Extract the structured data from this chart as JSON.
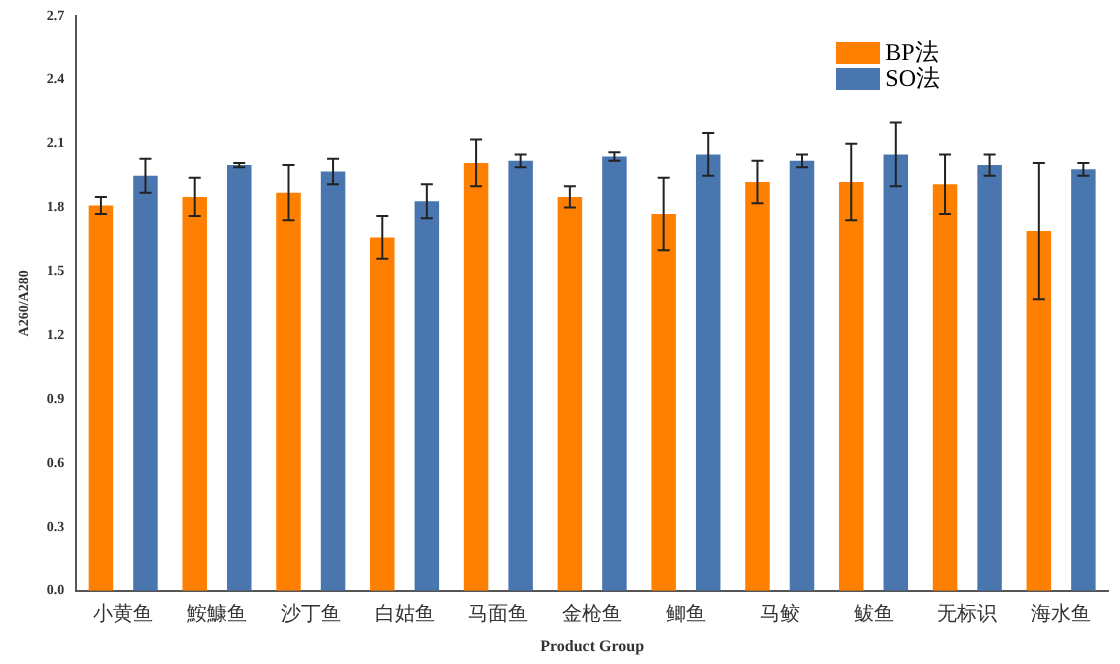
{
  "chart_data": {
    "type": "bar",
    "xlabel": "Product Group",
    "ylabel": "A260/A280",
    "categories": [
      "小黄鱼",
      "鮟鱇鱼",
      "沙丁鱼",
      "白姑鱼",
      "马面鱼",
      "金枪鱼",
      "鲫鱼",
      "马鲛",
      "鲅鱼",
      "无标识",
      "海水鱼"
    ],
    "series": [
      {
        "name": "BP法",
        "color": "#ff8000",
        "values": [
          1.81,
          1.85,
          1.87,
          1.66,
          2.01,
          1.85,
          1.77,
          1.92,
          1.92,
          1.91,
          1.69
        ],
        "errors": [
          0.04,
          0.09,
          0.13,
          0.1,
          0.11,
          0.05,
          0.17,
          0.1,
          0.18,
          0.14,
          0.32
        ]
      },
      {
        "name": "SO法",
        "color": "#4a76b0",
        "values": [
          1.95,
          2.0,
          1.97,
          1.83,
          2.02,
          2.04,
          2.05,
          2.02,
          2.05,
          2.0,
          1.98
        ],
        "errors": [
          0.08,
          0.01,
          0.06,
          0.08,
          0.03,
          0.02,
          0.1,
          0.03,
          0.15,
          0.05,
          0.03
        ]
      }
    ],
    "ylim": [
      0,
      2.7
    ],
    "yticks": [
      {
        "value": 0,
        "label": "0.0"
      },
      0.3,
      0.6,
      0.9,
      1.2,
      1.5,
      1.8,
      2.1,
      2.4,
      2.7
    ],
    "grid": false,
    "legend": "top right"
  }
}
